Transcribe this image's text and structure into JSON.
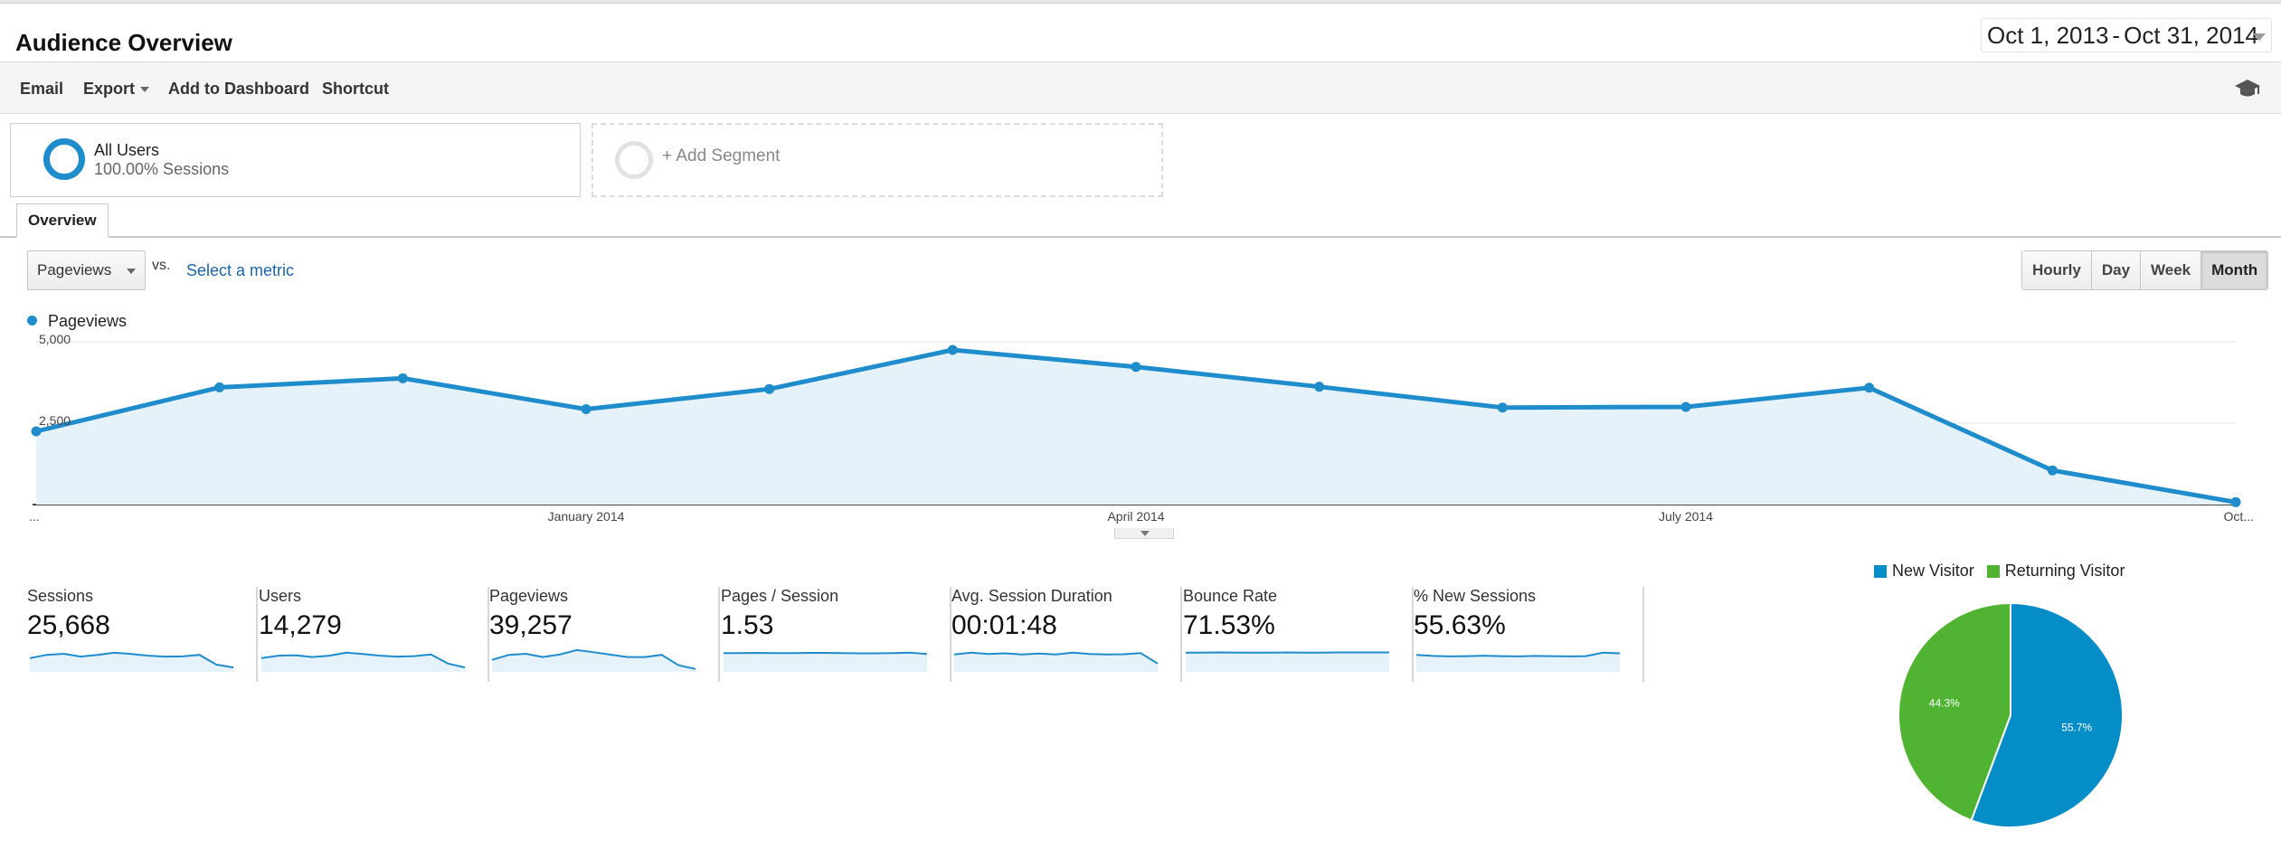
{
  "page": {
    "title": "Audience Overview",
    "date_start": "Oct 1, 2013",
    "date_separator": "-",
    "date_end": "Oct 31, 2014"
  },
  "toolbar": {
    "email": "Email",
    "export": "Export",
    "add_to_dashboard": "Add to Dashboard",
    "shortcut": "Shortcut",
    "icon": "graduation-cap-icon"
  },
  "segments": {
    "active": {
      "name": "All Users",
      "sub": "100.00% Sessions"
    },
    "add_label": "+ Add Segment"
  },
  "tabs": {
    "overview": "Overview"
  },
  "controls": {
    "metric": "Pageviews",
    "vs": "vs.",
    "select_metric": "Select a metric",
    "periods": [
      "Hourly",
      "Day",
      "Week",
      "Month"
    ],
    "active_period": "Month"
  },
  "colors": {
    "primary": "#1f8dcc",
    "fill": "#e6f2f9",
    "new_visitor": "#058dc7",
    "returning_visitor": "#50b432",
    "link": "#1a66aa"
  },
  "chart_data": [
    {
      "type": "line",
      "legend": [
        "Pageviews"
      ],
      "series": [
        {
          "name": "Pageviews",
          "x": [
            "Oct 2013",
            "Nov 2013",
            "Dec 2013",
            "Jan 2014",
            "Feb 2014",
            "Mar 2014",
            "Apr 2014",
            "May 2014",
            "Jun 2014",
            "Jul 2014",
            "Aug 2014",
            "Sep 2014",
            "Oct 2014"
          ],
          "values": [
            2250,
            3600,
            3880,
            2930,
            3550,
            4750,
            4230,
            3620,
            2980,
            3000,
            3590,
            1050,
            75
          ]
        }
      ],
      "xlabels": [
        "...",
        "January 2014",
        "April 2014",
        "July 2014",
        "Oct..."
      ],
      "xlabel_index": [
        0,
        3,
        6,
        9,
        12
      ],
      "yticks": [
        5000,
        2500
      ],
      "ytick_labels": [
        "5,000",
        "2,500"
      ],
      "ylim": [
        0,
        5000
      ],
      "grid": true,
      "legend_position": "top-left"
    },
    {
      "type": "pie",
      "legend_position": "top",
      "labels": [
        "New Visitor",
        "Returning Visitor"
      ],
      "values": [
        55.7,
        44.3
      ],
      "value_labels": [
        "55.7%",
        "44.3%"
      ]
    }
  ],
  "metrics": [
    {
      "label": "Sessions",
      "value": "25,668",
      "spark": [
        0.55,
        0.7,
        0.75,
        0.62,
        0.7,
        0.8,
        0.74,
        0.66,
        0.62,
        0.63,
        0.7,
        0.25,
        0.12
      ]
    },
    {
      "label": "Users",
      "value": "14,279",
      "spark": [
        0.55,
        0.66,
        0.68,
        0.6,
        0.66,
        0.8,
        0.74,
        0.66,
        0.62,
        0.64,
        0.72,
        0.3,
        0.12
      ]
    },
    {
      "label": "Pageviews",
      "value": "39,257",
      "spark": [
        0.47,
        0.7,
        0.75,
        0.6,
        0.72,
        0.92,
        0.82,
        0.71,
        0.6,
        0.6,
        0.7,
        0.22,
        0.05
      ]
    },
    {
      "label": "Pages / Session",
      "value": "1.53",
      "spark": [
        0.78,
        0.78,
        0.79,
        0.78,
        0.78,
        0.79,
        0.79,
        0.78,
        0.77,
        0.77,
        0.78,
        0.8,
        0.74
      ]
    },
    {
      "label": "Avg. Session Duration",
      "value": "00:01:48",
      "spark": [
        0.72,
        0.8,
        0.74,
        0.77,
        0.72,
        0.76,
        0.72,
        0.8,
        0.74,
        0.72,
        0.73,
        0.78,
        0.3
      ]
    },
    {
      "label": "Bounce Rate",
      "value": "71.53%",
      "spark": [
        0.8,
        0.8,
        0.81,
        0.8,
        0.8,
        0.8,
        0.81,
        0.8,
        0.8,
        0.81,
        0.81,
        0.81,
        0.81
      ]
    },
    {
      "label": "% New Sessions",
      "value": "55.63%",
      "spark": [
        0.7,
        0.65,
        0.63,
        0.64,
        0.66,
        0.64,
        0.63,
        0.65,
        0.64,
        0.63,
        0.64,
        0.8,
        0.77
      ]
    }
  ]
}
